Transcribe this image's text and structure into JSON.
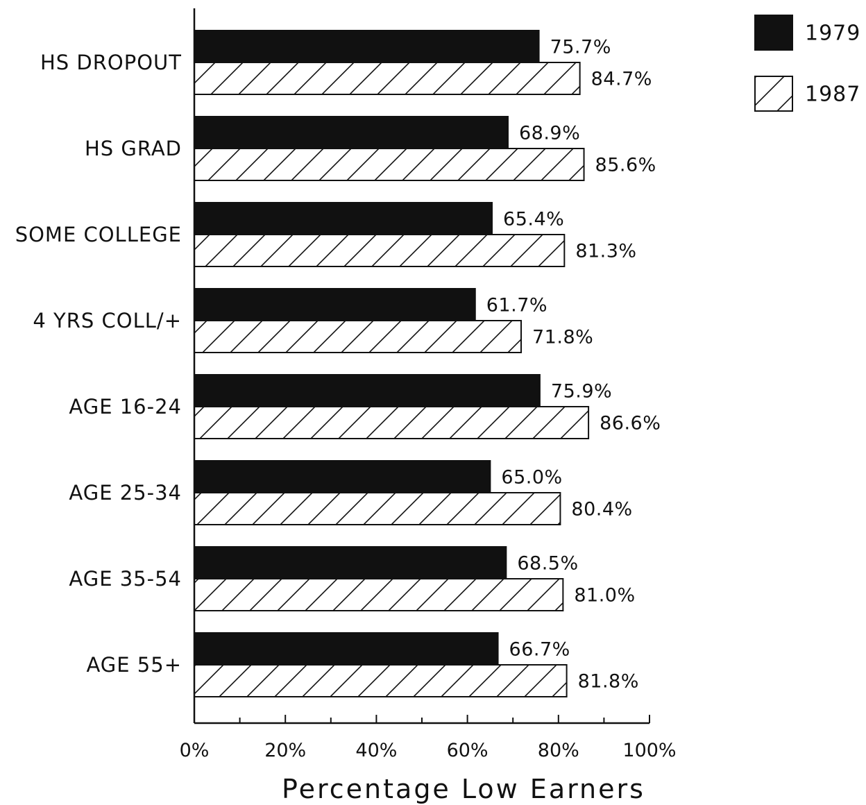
{
  "chart_data": {
    "type": "bar",
    "orientation": "horizontal",
    "categories": [
      "HS DROPOUT",
      "HS GRAD",
      "SOME COLLEGE",
      "4 YRS COLL/+",
      "AGE 16-24",
      "AGE 25-34",
      "AGE 35-54",
      "AGE 55+"
    ],
    "series": [
      {
        "name": "1979",
        "style": "solid",
        "color": "#111111",
        "values": [
          75.7,
          68.9,
          65.4,
          61.7,
          75.9,
          65.0,
          68.5,
          66.7
        ],
        "labels": [
          "75.7%",
          "68.9%",
          "65.4%",
          "61.7%",
          "75.9%",
          "65.0%",
          "68.5%",
          "66.7%"
        ]
      },
      {
        "name": "1987",
        "style": "hatched",
        "color": "#ffffff",
        "values": [
          84.7,
          85.6,
          81.3,
          71.8,
          86.6,
          80.4,
          81.0,
          81.8
        ],
        "labels": [
          "84.7%",
          "85.6%",
          "81.3%",
          "71.8%",
          "86.6%",
          "80.4%",
          "81.0%",
          "81.8%"
        ]
      }
    ],
    "xlabel": "Percentage Low Earners",
    "xlim": [
      0,
      100
    ],
    "xticks": [
      0,
      20,
      40,
      60,
      80,
      100
    ],
    "xtick_labels": [
      "0%",
      "20%",
      "40%",
      "60%",
      "80%",
      "100%"
    ],
    "legend_position": "top-right",
    "grid": false
  }
}
